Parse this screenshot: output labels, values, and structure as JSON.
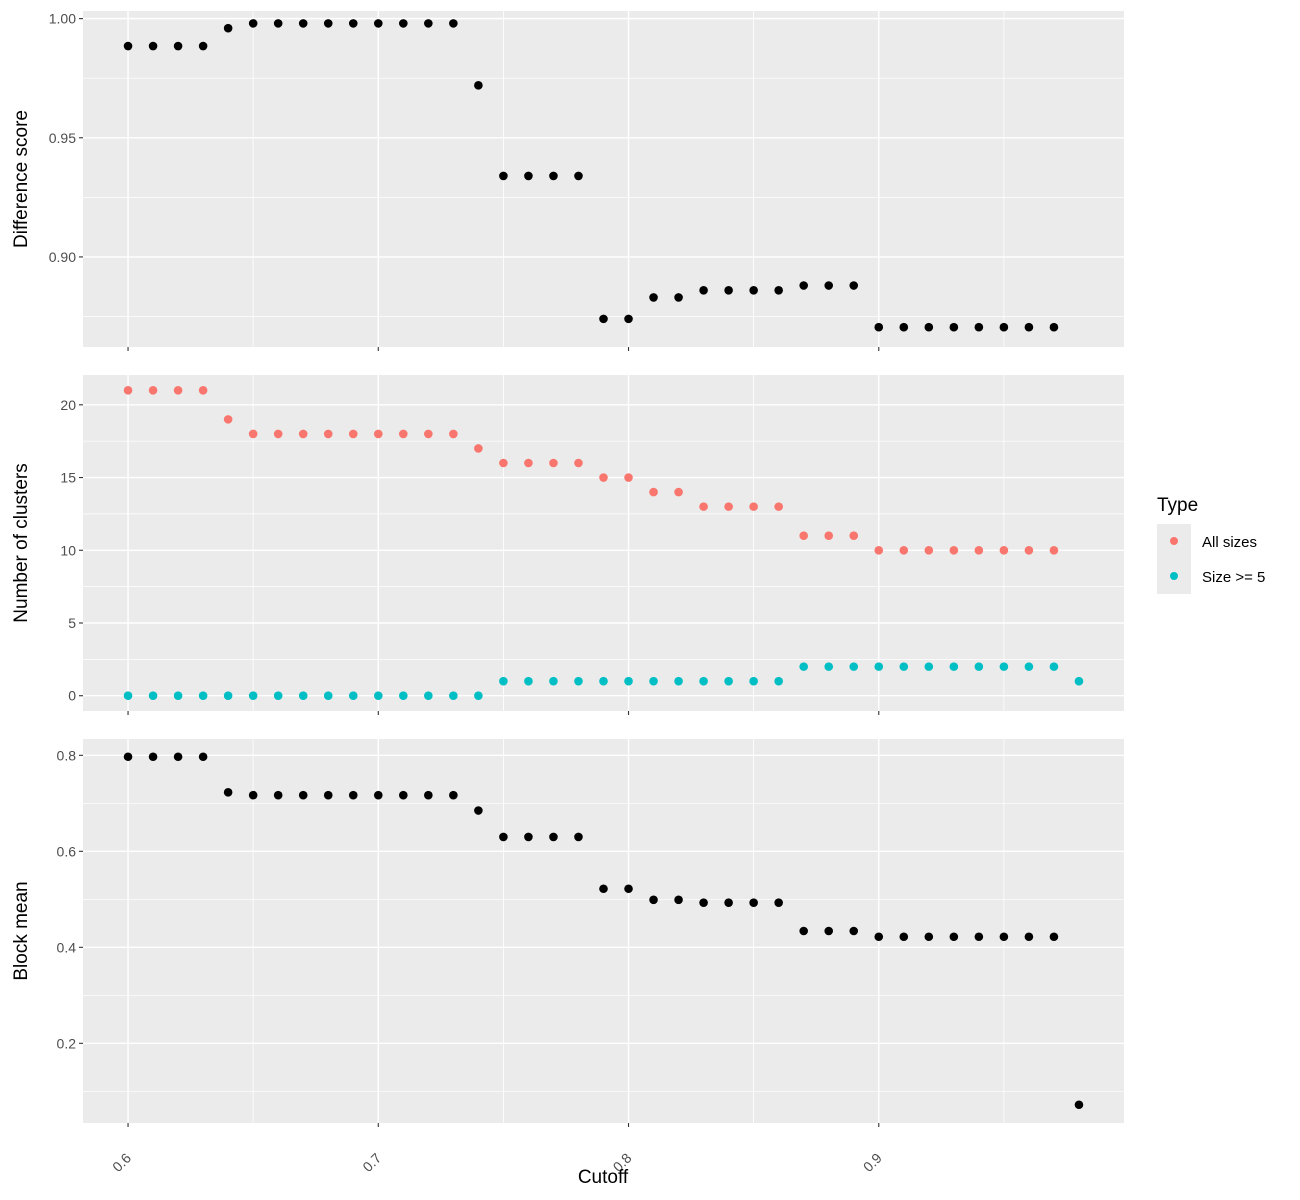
{
  "chart_data": {
    "type": "scatter",
    "xlabel": "Cutoff",
    "x_ticks": [
      "0.6",
      "0.7",
      "0.8",
      "0.9"
    ],
    "x_tick_values": [
      0.6,
      0.7,
      0.8,
      0.9
    ],
    "xlim": [
      0.582,
      0.998
    ],
    "legend": {
      "title": "Type",
      "placement": "right",
      "entries": [
        {
          "label": "All sizes",
          "color": "#F8766D"
        },
        {
          "label": "Size >= 5",
          "color": "#00BFC4"
        }
      ]
    },
    "panels": [
      {
        "ylabel": "Difference score",
        "ylim": [
          0.8622,
          1.0032
        ],
        "y_ticks": [
          "0.90",
          "0.95",
          "1.00"
        ],
        "y_tick_values": [
          0.9,
          0.95,
          1.0
        ],
        "series": [
          {
            "color": "#000000",
            "x": [
              0.6,
              0.61,
              0.62,
              0.63,
              0.64,
              0.65,
              0.66,
              0.67,
              0.68,
              0.69,
              0.7,
              0.71,
              0.72,
              0.73,
              0.74,
              0.75,
              0.76,
              0.77,
              0.78,
              0.79,
              0.8,
              0.81,
              0.82,
              0.83,
              0.84,
              0.85,
              0.86,
              0.87,
              0.88,
              0.89,
              0.9,
              0.91,
              0.92,
              0.93,
              0.94,
              0.95,
              0.96,
              0.97
            ],
            "y": [
              0.9885,
              0.9885,
              0.9885,
              0.9885,
              0.996,
              0.998,
              0.998,
              0.998,
              0.998,
              0.998,
              0.998,
              0.998,
              0.998,
              0.998,
              0.972,
              0.934,
              0.934,
              0.934,
              0.934,
              0.874,
              0.874,
              0.883,
              0.883,
              0.886,
              0.886,
              0.886,
              0.886,
              0.888,
              0.888,
              0.888,
              0.8705,
              0.8705,
              0.8705,
              0.8705,
              0.8705,
              0.8705,
              0.8705,
              0.8705
            ]
          }
        ]
      },
      {
        "ylabel": "Number of clusters",
        "ylim": [
          -1.05,
          22.05
        ],
        "y_ticks": [
          "0",
          "5",
          "10",
          "15",
          "20"
        ],
        "y_tick_values": [
          0,
          5,
          10,
          15,
          20
        ],
        "series": [
          {
            "name": "All sizes",
            "color": "#F8766D",
            "x": [
              0.6,
              0.61,
              0.62,
              0.63,
              0.64,
              0.65,
              0.66,
              0.67,
              0.68,
              0.69,
              0.7,
              0.71,
              0.72,
              0.73,
              0.74,
              0.75,
              0.76,
              0.77,
              0.78,
              0.79,
              0.8,
              0.81,
              0.82,
              0.83,
              0.84,
              0.85,
              0.86,
              0.87,
              0.88,
              0.89,
              0.9,
              0.91,
              0.92,
              0.93,
              0.94,
              0.95,
              0.96,
              0.97
            ],
            "y": [
              21,
              21,
              21,
              21,
              19,
              18,
              18,
              18,
              18,
              18,
              18,
              18,
              18,
              18,
              17,
              16,
              16,
              16,
              16,
              15,
              15,
              14,
              14,
              13,
              13,
              13,
              13,
              11,
              11,
              11,
              10,
              10,
              10,
              10,
              10,
              10,
              10,
              10
            ]
          },
          {
            "name": "Size >= 5",
            "color": "#00BFC4",
            "x": [
              0.6,
              0.61,
              0.62,
              0.63,
              0.64,
              0.65,
              0.66,
              0.67,
              0.68,
              0.69,
              0.7,
              0.71,
              0.72,
              0.73,
              0.74,
              0.75,
              0.76,
              0.77,
              0.78,
              0.79,
              0.8,
              0.81,
              0.82,
              0.83,
              0.84,
              0.85,
              0.86,
              0.87,
              0.88,
              0.89,
              0.9,
              0.91,
              0.92,
              0.93,
              0.94,
              0.95,
              0.96,
              0.97,
              0.98
            ],
            "y": [
              0,
              0,
              0,
              0,
              0,
              0,
              0,
              0,
              0,
              0,
              0,
              0,
              0,
              0,
              0,
              1,
              1,
              1,
              1,
              1,
              1,
              1,
              1,
              1,
              1,
              1,
              1,
              2,
              2,
              2,
              2,
              2,
              2,
              2,
              2,
              2,
              2,
              2,
              1
            ]
          }
        ]
      },
      {
        "ylabel": "Block mean",
        "ylim": [
          0.034,
          0.834
        ],
        "y_ticks": [
          "0.2",
          "0.4",
          "0.6",
          "0.8"
        ],
        "y_tick_values": [
          0.2,
          0.4,
          0.6,
          0.8
        ],
        "series": [
          {
            "color": "#000000",
            "x": [
              0.6,
              0.61,
              0.62,
              0.63,
              0.64,
              0.65,
              0.66,
              0.67,
              0.68,
              0.69,
              0.7,
              0.71,
              0.72,
              0.73,
              0.74,
              0.75,
              0.76,
              0.77,
              0.78,
              0.79,
              0.8,
              0.81,
              0.82,
              0.83,
              0.84,
              0.85,
              0.86,
              0.87,
              0.88,
              0.89,
              0.9,
              0.91,
              0.92,
              0.93,
              0.94,
              0.95,
              0.96,
              0.97,
              0.98
            ],
            "y": [
              0.797,
              0.797,
              0.797,
              0.797,
              0.723,
              0.717,
              0.717,
              0.717,
              0.717,
              0.717,
              0.717,
              0.717,
              0.717,
              0.717,
              0.685,
              0.63,
              0.63,
              0.63,
              0.63,
              0.522,
              0.522,
              0.499,
              0.499,
              0.493,
              0.493,
              0.493,
              0.493,
              0.434,
              0.434,
              0.434,
              0.422,
              0.422,
              0.422,
              0.422,
              0.422,
              0.422,
              0.422,
              0.422,
              0.072
            ]
          }
        ]
      }
    ]
  }
}
